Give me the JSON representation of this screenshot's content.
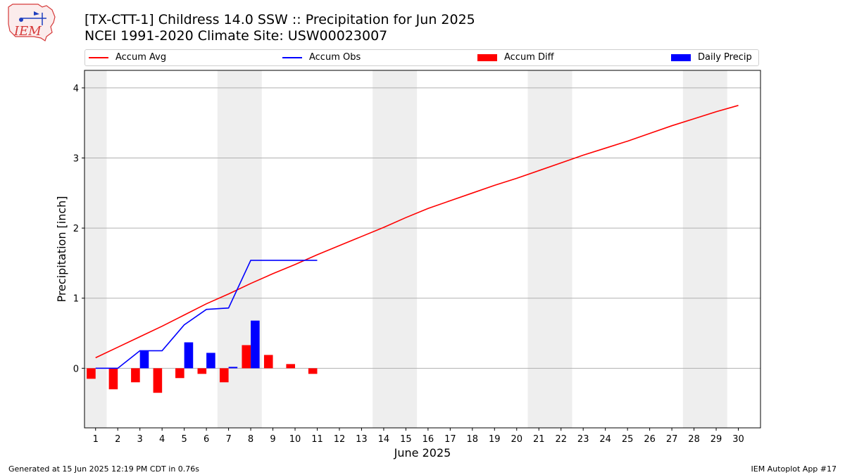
{
  "header": {
    "logo_text": "IEM",
    "title_line1": "[TX-CTT-1] Childress 14.0 SSW :: Precipitation for Jun 2025",
    "title_line2": "NCEI 1991-2020 Climate Site: USW00023007"
  },
  "footer": {
    "left": "Generated at 15 Jun 2025 12:19 PM CDT in 0.76s",
    "right": "IEM Autoplot App #17"
  },
  "chart_data": {
    "type": "bar",
    "xlabel": "June 2025",
    "ylabel": "Precipitation [inch]",
    "xlim": [
      0.5,
      31.0
    ],
    "ylim": [
      -0.85,
      4.25
    ],
    "yticks": [
      0,
      1,
      2,
      3,
      4
    ],
    "xticks": [
      1,
      2,
      3,
      4,
      5,
      6,
      7,
      8,
      9,
      10,
      11,
      12,
      13,
      14,
      15,
      16,
      17,
      18,
      19,
      20,
      21,
      22,
      23,
      24,
      25,
      26,
      27,
      28,
      29,
      30
    ],
    "grid": "horizontal",
    "legend_position": "top",
    "weekend_shading": [
      [
        0.5,
        1.5
      ],
      [
        6.5,
        8.5
      ],
      [
        13.5,
        15.5
      ],
      [
        20.5,
        22.5
      ],
      [
        27.5,
        29.5
      ]
    ],
    "series": [
      {
        "name": "Accum Avg",
        "kind": "line",
        "color": "#ff0000",
        "x": [
          1,
          2,
          3,
          4,
          5,
          6,
          7,
          8,
          9,
          10,
          11,
          12,
          13,
          14,
          15,
          16,
          17,
          18,
          19,
          20,
          21,
          22,
          23,
          24,
          25,
          26,
          27,
          28,
          29,
          30
        ],
        "values": [
          0.15,
          0.3,
          0.45,
          0.6,
          0.76,
          0.92,
          1.06,
          1.21,
          1.35,
          1.48,
          1.62,
          1.75,
          1.88,
          2.01,
          2.15,
          2.28,
          2.39,
          2.5,
          2.61,
          2.71,
          2.82,
          2.93,
          3.04,
          3.14,
          3.24,
          3.35,
          3.46,
          3.56,
          3.66,
          3.75
        ]
      },
      {
        "name": "Accum Obs",
        "kind": "line",
        "color": "#0000ff",
        "x": [
          1,
          2,
          3,
          4,
          5,
          6,
          7,
          8,
          9,
          10,
          11
        ],
        "values": [
          0.0,
          0.0,
          0.25,
          0.25,
          0.62,
          0.84,
          0.86,
          1.54,
          1.54,
          1.54,
          1.54
        ]
      },
      {
        "name": "Accum Diff",
        "kind": "bar",
        "color": "#ff0000",
        "x": [
          1,
          2,
          3,
          4,
          5,
          6,
          7,
          8,
          9,
          10,
          11
        ],
        "values": [
          -0.15,
          -0.3,
          -0.2,
          -0.35,
          -0.14,
          -0.08,
          -0.2,
          0.33,
          0.19,
          0.06,
          -0.08
        ]
      },
      {
        "name": "Daily Precip",
        "kind": "bar",
        "color": "#0000ff",
        "x": [
          1,
          2,
          3,
          4,
          5,
          6,
          7,
          8,
          9,
          10,
          11
        ],
        "values": [
          0,
          0,
          0.25,
          0,
          0.37,
          0.22,
          0.02,
          0.68,
          0,
          0,
          0
        ]
      }
    ]
  }
}
